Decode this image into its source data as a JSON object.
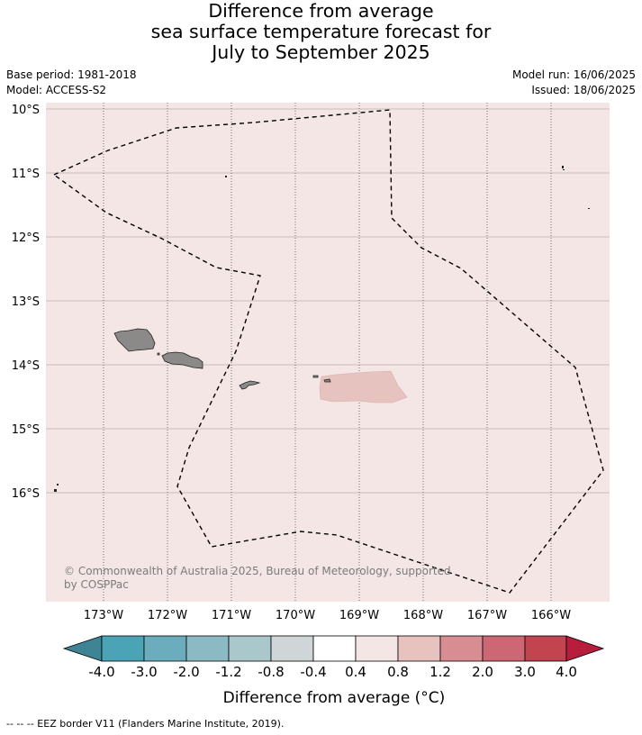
{
  "title": {
    "line1": "Difference from average",
    "line2": "sea surface temperature forecast for",
    "line3": "July to September 2025"
  },
  "info": {
    "base_period": "Base period: 1981-2018",
    "model": "Model: ACCESS-S2",
    "model_run": "Model run: 16/06/2025",
    "issued": "Issued: 18/06/2025"
  },
  "map": {
    "lat_labels": [
      "10°S",
      "11°S",
      "12°S",
      "13°S",
      "14°S",
      "15°S",
      "16°S"
    ],
    "lon_labels": [
      "173°W",
      "172°W",
      "171°W",
      "170°W",
      "169°W",
      "168°W",
      "167°W",
      "166°W"
    ],
    "background_color": "#f4e6e5",
    "anomaly_patch_color": "#e6c3bf",
    "land_color": "#8c8989",
    "copyright_line1": "© Commonwealth of Australia 2025, Bureau of Meteorology, supported",
    "copyright_line2": "by COSPPac"
  },
  "colorbar": {
    "labels": [
      "-4.0",
      "-3.0",
      "-2.0",
      "-1.2",
      "-0.8",
      "-0.4",
      "0.4",
      "0.8",
      "1.2",
      "2.0",
      "3.0",
      "4.0"
    ],
    "colors": [
      "#3e8494",
      "#4aa4b6",
      "#6cadbd",
      "#8bb9c4",
      "#a9c8cc",
      "#d0d6d7",
      "#ffffff",
      "#f5e6e6",
      "#e8c2bf",
      "#d88d93",
      "#cc6773",
      "#c2444f",
      "#b61e3c"
    ],
    "label": "Difference from average (°C)"
  },
  "footnote": "-- -- -- EEZ border V11 (Flanders Marine Institute, 2019)."
}
